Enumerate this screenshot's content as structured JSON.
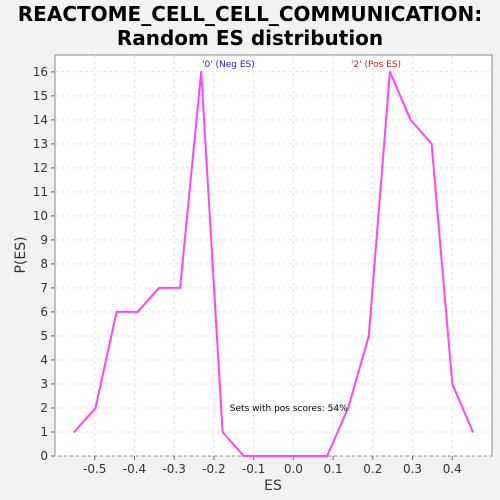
{
  "chart_data": {
    "type": "line",
    "title_lines": [
      "REACTOME_CELL_CELL_COMMUNICATION:",
      "Random ES distribution"
    ],
    "xlabel": "ES",
    "ylabel": "P(ES)",
    "xlim": [
      -0.6,
      0.5
    ],
    "ylim": [
      0,
      16.7
    ],
    "xticks": [
      -0.5,
      -0.4,
      -0.3,
      -0.2,
      -0.1,
      0.0,
      0.1,
      0.2,
      0.3,
      0.4
    ],
    "xtick_labels": [
      "-0.5",
      "-0.4",
      "-0.3",
      "-0.2",
      "-0.1",
      "0.0",
      "0.1",
      "0.2",
      "0.3",
      "0.4"
    ],
    "yticks": [
      0,
      1,
      2,
      3,
      4,
      5,
      6,
      7,
      8,
      9,
      10,
      11,
      12,
      13,
      14,
      15,
      16
    ],
    "grid": true,
    "series": [
      {
        "color": "#ff44ff",
        "x": [
          -0.552,
          -0.498,
          -0.445,
          -0.392,
          -0.338,
          -0.285,
          -0.232,
          -0.178,
          -0.125,
          -0.071,
          -0.018,
          0.085,
          0.138,
          0.19,
          0.243,
          0.295,
          0.348,
          0.4,
          0.452
        ],
        "y": [
          1,
          2,
          6,
          6,
          7,
          7,
          16,
          1,
          0,
          0,
          0,
          0,
          2,
          5,
          16,
          14,
          13,
          3,
          1
        ]
      }
    ],
    "annotations": [
      {
        "text": "'0' (Neg ES)",
        "x": -0.23,
        "color": "#2222cc"
      },
      {
        "text": "'2' (Pos ES)",
        "x": 0.145,
        "color": "#cc2222"
      },
      {
        "text": "Sets with pos scores: 54%",
        "x": -0.16,
        "y": 2,
        "color": "#000000"
      }
    ]
  }
}
